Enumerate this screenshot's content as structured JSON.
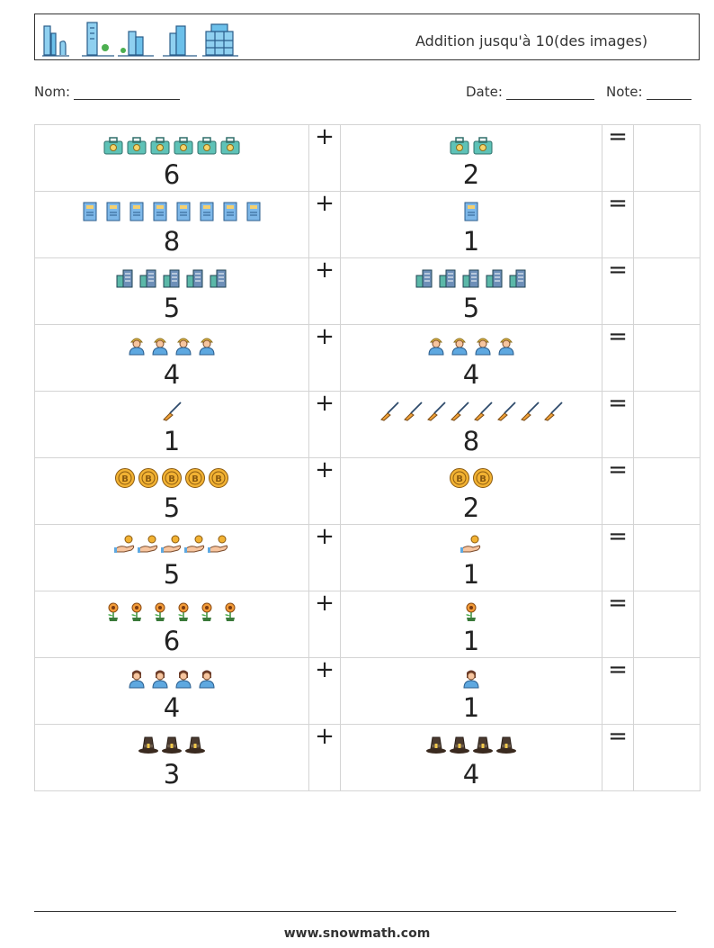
{
  "header": {
    "logo_icons": [
      "skyline-icon",
      "tower-tree-icon",
      "office-plant-icon",
      "skyscraper-icon",
      "apartment-icon"
    ],
    "title": "Addition jusqu'à 10(des images)"
  },
  "info": {
    "nom_label": "Nom:",
    "date_label": "Date:",
    "note_label": "Note:"
  },
  "rows": [
    {
      "a": "6",
      "b": "2",
      "op": "+",
      "eq": "=",
      "icon": "suitcase-icon"
    },
    {
      "a": "8",
      "b": "1",
      "op": "+",
      "eq": "=",
      "icon": "notebook-icon"
    },
    {
      "a": "5",
      "b": "5",
      "op": "+",
      "eq": "=",
      "icon": "city-buildings-icon"
    },
    {
      "a": "4",
      "b": "4",
      "op": "+",
      "eq": "=",
      "icon": "worker-icon"
    },
    {
      "a": "1",
      "b": "8",
      "op": "+",
      "eq": "=",
      "icon": "broom-icon"
    },
    {
      "a": "5",
      "b": "2",
      "op": "+",
      "eq": "=",
      "icon": "bitcoin-coin-icon"
    },
    {
      "a": "5",
      "b": "1",
      "op": "+",
      "eq": "=",
      "icon": "hand-coin-icon"
    },
    {
      "a": "6",
      "b": "1",
      "op": "+",
      "eq": "=",
      "icon": "potted-flower-icon"
    },
    {
      "a": "4",
      "b": "1",
      "op": "+",
      "eq": "=",
      "icon": "woman-icon"
    },
    {
      "a": "3",
      "b": "4",
      "op": "+",
      "eq": "=",
      "icon": "pilgrim-hat-icon"
    }
  ],
  "footer": {
    "url": "www.snowmath.com"
  }
}
